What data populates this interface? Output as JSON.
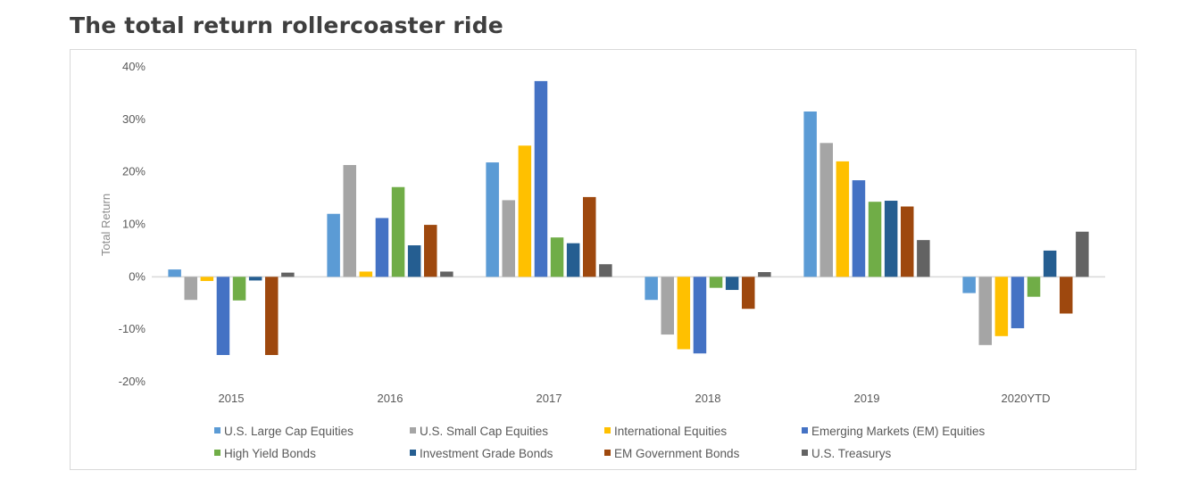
{
  "page": {
    "title": "The total return rollercoaster ride"
  },
  "chart_data": {
    "type": "bar",
    "title": "",
    "xlabel": "",
    "ylabel": "Total Return",
    "ylim": [
      -20,
      40
    ],
    "yticks": [
      -20,
      -10,
      0,
      10,
      20,
      30,
      40
    ],
    "ytick_labels": [
      "-20%",
      "-10%",
      "0%",
      "10%",
      "20%",
      "30%",
      "40%"
    ],
    "categories": [
      "2015",
      "2016",
      "2017",
      "2018",
      "2019",
      "2020YTD"
    ],
    "legend_position": "bottom",
    "grid": false,
    "series": [
      {
        "name": "U.S. Large Cap Equities",
        "color": "#5b9bd5",
        "values": [
          1.4,
          12.0,
          21.8,
          -4.4,
          31.5,
          -3.1
        ]
      },
      {
        "name": "U.S. Small Cap Equities",
        "color": "#a5a5a5",
        "values": [
          -4.4,
          21.3,
          14.6,
          -11.0,
          25.5,
          -13.0
        ]
      },
      {
        "name": "International Equities",
        "color": "#ffc000",
        "values": [
          -0.8,
          1.0,
          25.0,
          -13.8,
          22.0,
          -11.3
        ]
      },
      {
        "name": "Emerging Markets (EM) Equities",
        "color": "#4472c4",
        "values": [
          -14.9,
          11.2,
          37.3,
          -14.6,
          18.4,
          -9.8
        ]
      },
      {
        "name": "High Yield Bonds",
        "color": "#70ad47",
        "values": [
          -4.5,
          17.1,
          7.5,
          -2.1,
          14.3,
          -3.8
        ]
      },
      {
        "name": "Investment Grade Bonds",
        "color": "#255e91",
        "values": [
          -0.7,
          6.0,
          6.4,
          -2.5,
          14.5,
          5.0
        ]
      },
      {
        "name": "EM Government Bonds",
        "color": "#9e480e",
        "values": [
          -14.9,
          9.9,
          15.2,
          -6.1,
          13.4,
          -7.0
        ]
      },
      {
        "name": "U.S. Treasurys",
        "color": "#636363",
        "values": [
          0.8,
          1.0,
          2.4,
          0.9,
          7.0,
          8.6
        ]
      }
    ]
  }
}
